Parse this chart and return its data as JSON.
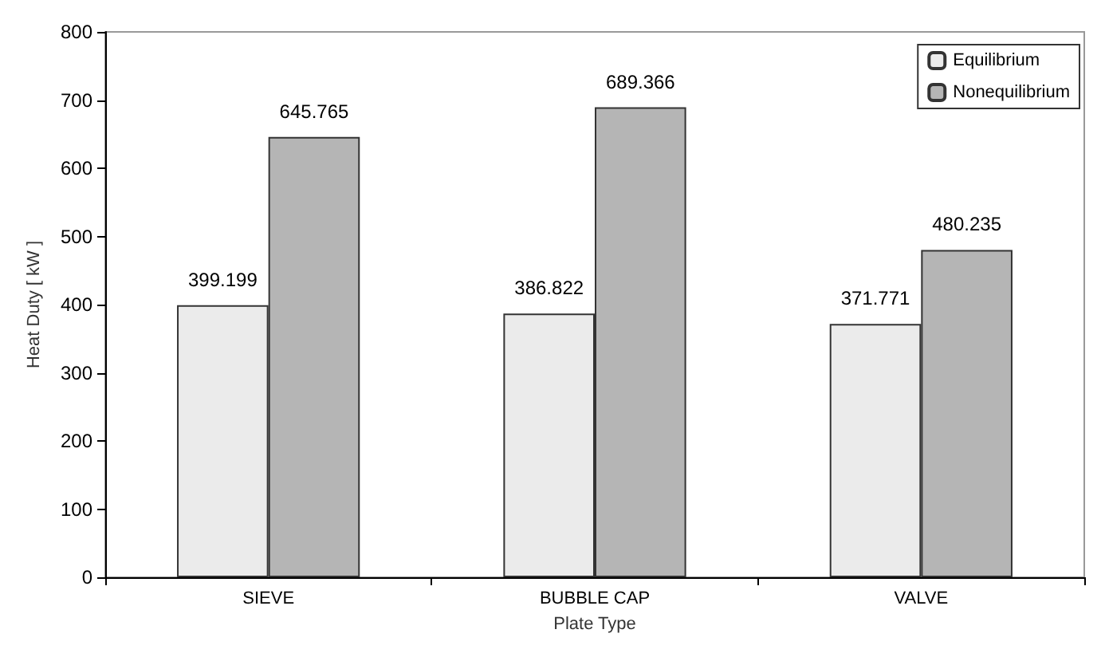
{
  "chart_data": {
    "type": "bar",
    "xlabel": "Plate Type",
    "ylabel": "Heat Duty [ kW ]",
    "categories": [
      "SIEVE",
      "BUBBLE CAP",
      "VALVE"
    ],
    "series": [
      {
        "name": "Equilibrium",
        "color": "#ebebeb",
        "values": [
          399.199,
          386.822,
          371.771
        ]
      },
      {
        "name": "Nonequilibrium",
        "color": "#b5b5b5",
        "values": [
          645.765,
          689.366,
          480.235
        ]
      }
    ],
    "ylim": [
      0,
      800
    ],
    "yticks": [
      0,
      100,
      200,
      300,
      400,
      500,
      600,
      700,
      800
    ],
    "grid": false,
    "legend": "top right",
    "data_labels": true
  }
}
